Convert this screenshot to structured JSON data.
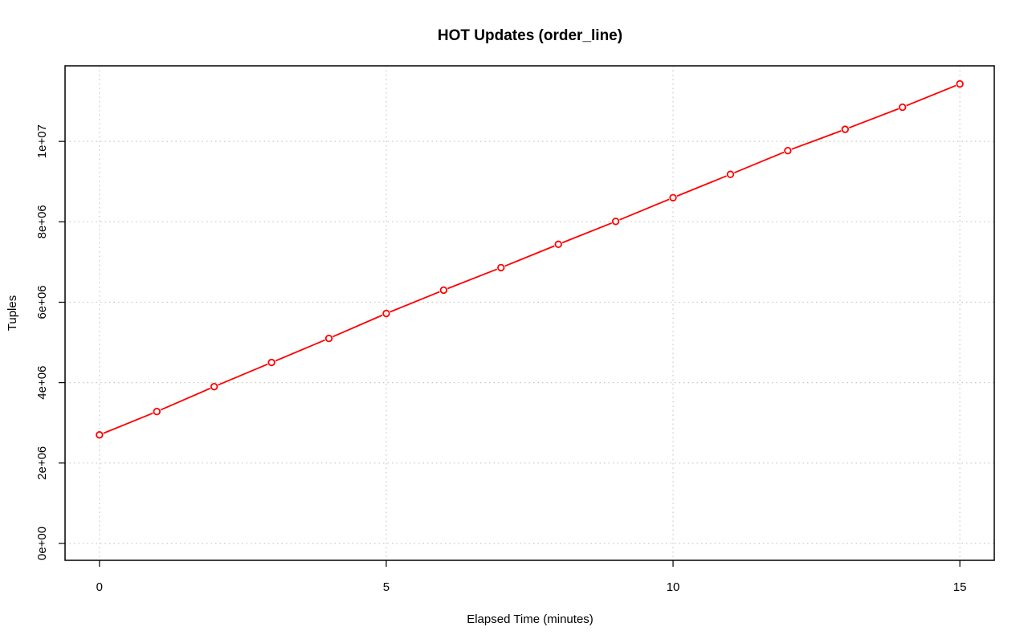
{
  "chart_data": {
    "type": "line",
    "title": "HOT Updates (order_line)",
    "xlabel": "Elapsed Time (minutes)",
    "ylabel": "Tuples",
    "xlim": [
      -0.6,
      15.6
    ],
    "ylim": [
      -420000,
      11880000
    ],
    "x_ticks": [
      0,
      5,
      10,
      15
    ],
    "x_tick_labels": [
      "0",
      "5",
      "10",
      "15"
    ],
    "y_ticks": [
      0,
      2000000,
      4000000,
      6000000,
      8000000,
      10000000
    ],
    "y_tick_labels": [
      "0e+00",
      "2e+06",
      "4e+06",
      "6e+06",
      "8e+06",
      "1e+07"
    ],
    "grid": true,
    "series": [
      {
        "color": "#ff0000",
        "x": [
          0,
          1,
          2,
          3,
          4,
          5,
          6,
          7,
          8,
          9,
          10,
          11,
          12,
          13,
          14,
          15
        ],
        "y": [
          2700000,
          3280000,
          3900000,
          4500000,
          5100000,
          5720000,
          6300000,
          6860000,
          7440000,
          8010000,
          8600000,
          9180000,
          9770000,
          10300000,
          10850000,
          11430000
        ]
      }
    ]
  }
}
